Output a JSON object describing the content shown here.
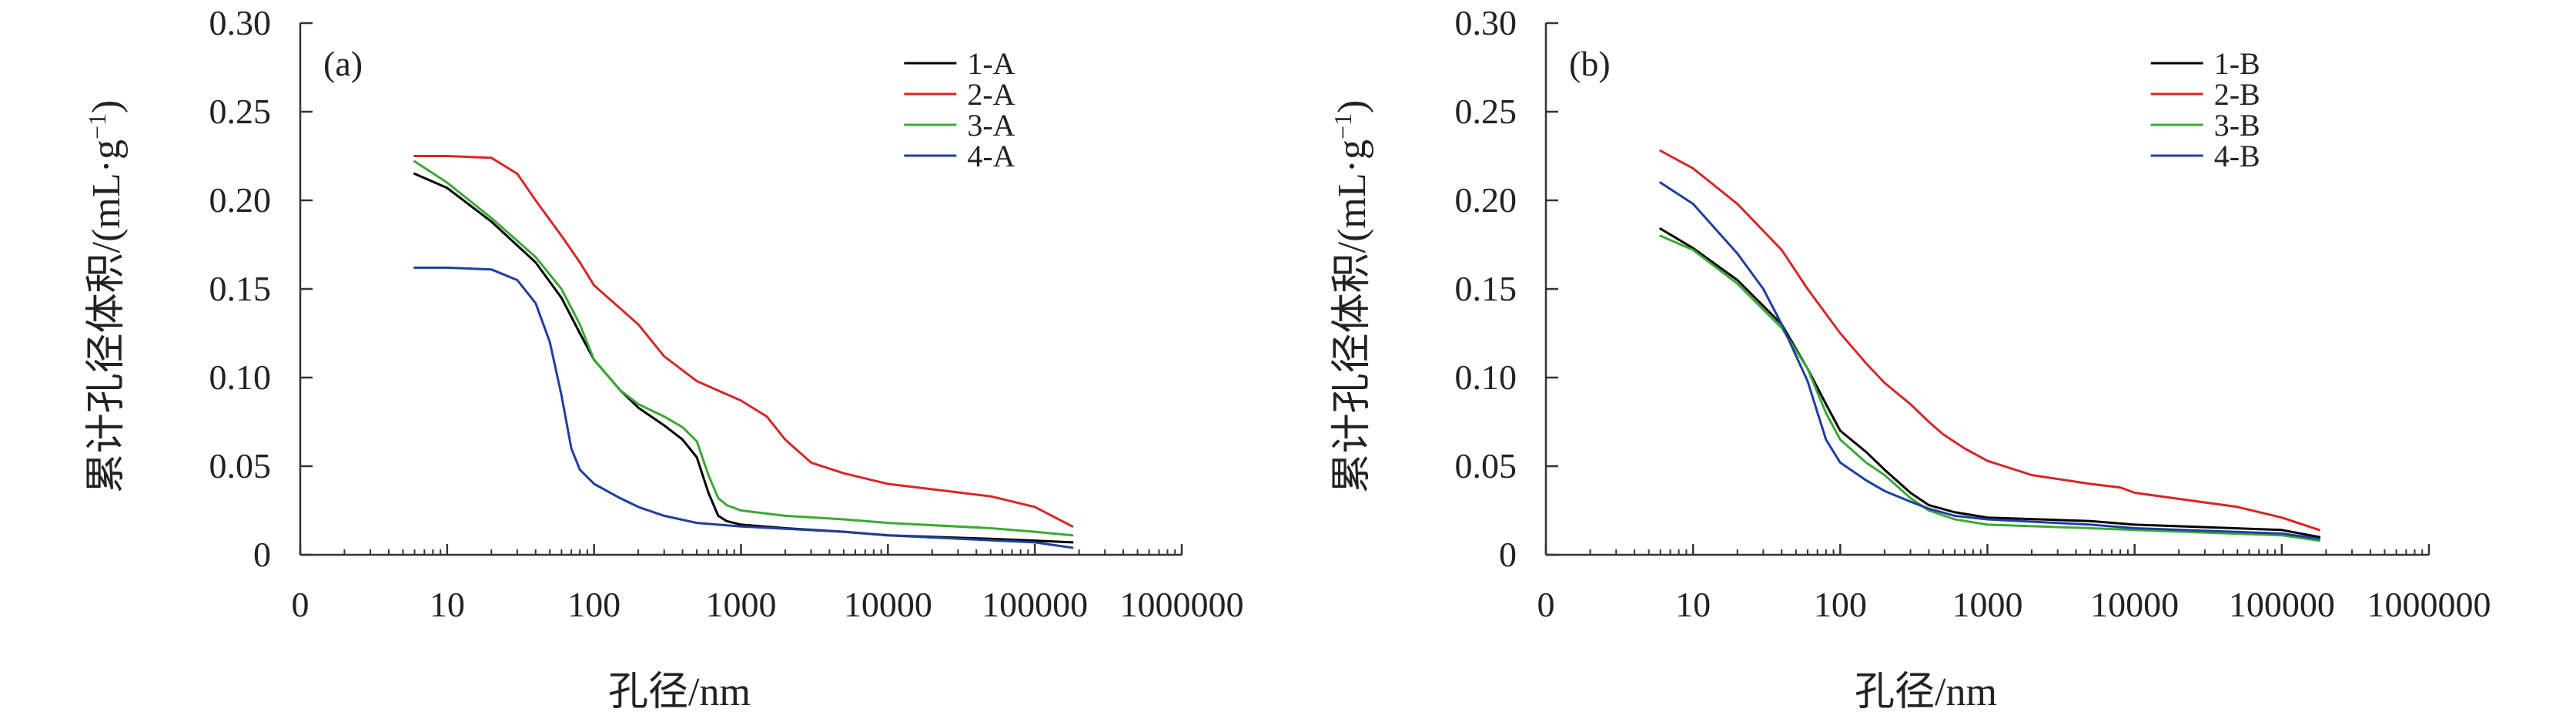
{
  "chart_data": [
    {
      "type": "line",
      "panel_label": "(a)",
      "xlabel": "孔径/nm",
      "ylabel": "累计孔径体积/(mL·g",
      "ylabel_sup": "−1",
      "ylabel_close": ")",
      "x_scale": "log",
      "xlim": [
        1,
        1000000
      ],
      "ylim": [
        0,
        0.3
      ],
      "x_ticks": [
        1,
        10,
        100,
        1000,
        10000,
        100000,
        1000000
      ],
      "x_tick_labels": [
        "0",
        "10",
        "100",
        "1000",
        "10000",
        "100000",
        "1000000"
      ],
      "y_ticks": [
        0,
        0.05,
        0.1,
        0.15,
        0.2,
        0.25,
        0.3
      ],
      "y_tick_labels": [
        "0",
        "0.05",
        "0.10",
        "0.15",
        "0.20",
        "0.25",
        "0.30"
      ],
      "legend_position": "top-right",
      "series": [
        {
          "name": "1-A",
          "color": "#000000",
          "x": [
            6,
            10,
            20,
            40,
            60,
            80,
            100,
            150,
            200,
            300,
            400,
            500,
            600,
            700,
            800,
            1000,
            2000,
            5000,
            10000,
            50000,
            100000,
            180000
          ],
          "y": [
            0.215,
            0.207,
            0.188,
            0.165,
            0.145,
            0.125,
            0.11,
            0.093,
            0.083,
            0.073,
            0.065,
            0.055,
            0.035,
            0.022,
            0.019,
            0.017,
            0.015,
            0.013,
            0.011,
            0.009,
            0.008,
            0.007
          ]
        },
        {
          "name": "2-A",
          "color": "#d62728",
          "x": [
            6,
            10,
            20,
            30,
            40,
            60,
            80,
            100,
            200,
            300,
            500,
            1000,
            1500,
            2000,
            3000,
            5000,
            10000,
            50000,
            100000,
            180000
          ],
          "y": [
            0.225,
            0.225,
            0.224,
            0.215,
            0.2,
            0.18,
            0.165,
            0.152,
            0.13,
            0.112,
            0.098,
            0.087,
            0.078,
            0.065,
            0.052,
            0.046,
            0.04,
            0.033,
            0.027,
            0.016
          ]
        },
        {
          "name": "3-A",
          "color": "#3aaa35",
          "x": [
            6,
            10,
            20,
            40,
            60,
            80,
            100,
            150,
            200,
            300,
            400,
            500,
            600,
            700,
            800,
            1000,
            2000,
            5000,
            10000,
            50000,
            100000,
            180000
          ],
          "y": [
            0.222,
            0.21,
            0.19,
            0.168,
            0.15,
            0.13,
            0.11,
            0.093,
            0.085,
            0.078,
            0.072,
            0.064,
            0.045,
            0.032,
            0.028,
            0.025,
            0.022,
            0.02,
            0.018,
            0.015,
            0.013,
            0.011
          ]
        },
        {
          "name": "4-A",
          "color": "#1f3f9e",
          "x": [
            6,
            10,
            20,
            30,
            40,
            50,
            60,
            70,
            80,
            100,
            150,
            200,
            300,
            500,
            1000,
            5000,
            10000,
            100000,
            180000
          ],
          "y": [
            0.162,
            0.162,
            0.161,
            0.155,
            0.142,
            0.12,
            0.09,
            0.06,
            0.048,
            0.04,
            0.032,
            0.027,
            0.022,
            0.018,
            0.016,
            0.013,
            0.011,
            0.007,
            0.004
          ]
        }
      ]
    },
    {
      "type": "line",
      "panel_label": "(b)",
      "xlabel": "孔径/nm",
      "ylabel": "累计孔径体积/(mL·g",
      "ylabel_sup": "−1",
      "ylabel_close": ")",
      "x_scale": "log",
      "xlim": [
        1,
        1000000
      ],
      "ylim": [
        0,
        0.3
      ],
      "x_ticks": [
        1,
        10,
        100,
        1000,
        10000,
        100000,
        1000000
      ],
      "x_tick_labels": [
        "0",
        "10",
        "100",
        "1000",
        "10000",
        "100000",
        "1000000"
      ],
      "y_ticks": [
        0,
        0.05,
        0.1,
        0.15,
        0.2,
        0.25,
        0.3
      ],
      "y_tick_labels": [
        "0",
        "0.05",
        "0.10",
        "0.15",
        "0.20",
        "0.25",
        "0.30"
      ],
      "legend_position": "top-right",
      "series": [
        {
          "name": "1-B",
          "color": "#000000",
          "x": [
            6,
            10,
            20,
            40,
            60,
            80,
            100,
            150,
            200,
            300,
            400,
            600,
            1000,
            5000,
            10000,
            100000,
            180000
          ],
          "y": [
            0.184,
            0.173,
            0.155,
            0.13,
            0.105,
            0.085,
            0.07,
            0.058,
            0.048,
            0.035,
            0.028,
            0.024,
            0.021,
            0.019,
            0.017,
            0.014,
            0.01
          ]
        },
        {
          "name": "2-B",
          "color": "#d62728",
          "x": [
            6,
            10,
            20,
            40,
            60,
            100,
            150,
            200,
            300,
            400,
            500,
            700,
            1000,
            2000,
            5000,
            8000,
            10000,
            50000,
            100000,
            180000
          ],
          "y": [
            0.228,
            0.218,
            0.198,
            0.172,
            0.15,
            0.125,
            0.108,
            0.097,
            0.085,
            0.075,
            0.068,
            0.06,
            0.053,
            0.045,
            0.04,
            0.038,
            0.035,
            0.027,
            0.021,
            0.014
          ]
        },
        {
          "name": "3-B",
          "color": "#3aaa35",
          "x": [
            6,
            10,
            20,
            40,
            60,
            80,
            100,
            150,
            200,
            300,
            400,
            600,
            1000,
            5000,
            10000,
            100000,
            180000
          ],
          "y": [
            0.18,
            0.172,
            0.153,
            0.128,
            0.105,
            0.08,
            0.065,
            0.052,
            0.045,
            0.032,
            0.025,
            0.02,
            0.017,
            0.015,
            0.014,
            0.011,
            0.008
          ]
        },
        {
          "name": "4-B",
          "color": "#1f3f9e",
          "x": [
            6,
            10,
            20,
            30,
            40,
            60,
            80,
            100,
            150,
            200,
            300,
            400,
            600,
            1000,
            5000,
            10000,
            100000,
            180000
          ],
          "y": [
            0.21,
            0.198,
            0.17,
            0.15,
            0.13,
            0.098,
            0.065,
            0.052,
            0.042,
            0.036,
            0.03,
            0.026,
            0.022,
            0.02,
            0.017,
            0.015,
            0.012,
            0.009
          ]
        }
      ]
    }
  ]
}
